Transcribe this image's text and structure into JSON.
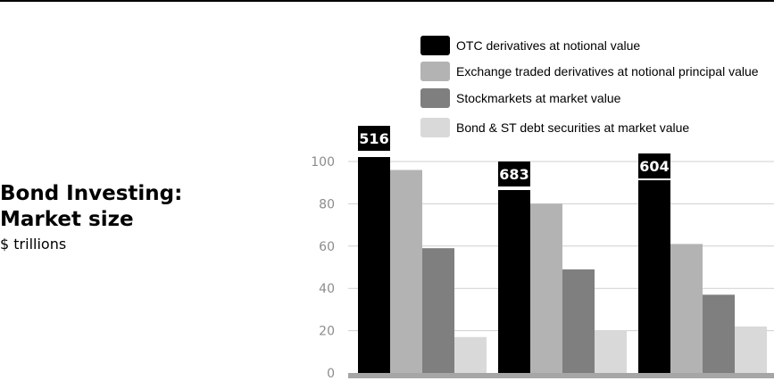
{
  "title_lines": [
    "Bond Investing:",
    "Market size"
  ],
  "subtitle": "$ trillions",
  "chart_data": {
    "type": "bar",
    "categories": [
      "",
      "",
      ""
    ],
    "ylim": [
      0,
      100
    ],
    "yticks": [
      0,
      20,
      40,
      60,
      80,
      100
    ],
    "grid": true,
    "legend_position": "top",
    "series": [
      {
        "name": "OTC derivatives at notional value",
        "color": "#000000",
        "values": [
          516,
          683,
          604
        ],
        "labels": [
          "516",
          "683",
          "604"
        ],
        "clipped": true
      },
      {
        "name": "Exchange traded derivatives at notional principal value",
        "color": "#b3b3b3",
        "values": [
          96,
          80,
          61
        ]
      },
      {
        "name": "Stockmarkets at market value",
        "color": "#7f7f7f",
        "values": [
          59,
          49,
          37
        ]
      },
      {
        "name": "Bond & ST debt securities at market value",
        "color": "#d9d9d9",
        "values": [
          17,
          20,
          22
        ]
      }
    ]
  }
}
